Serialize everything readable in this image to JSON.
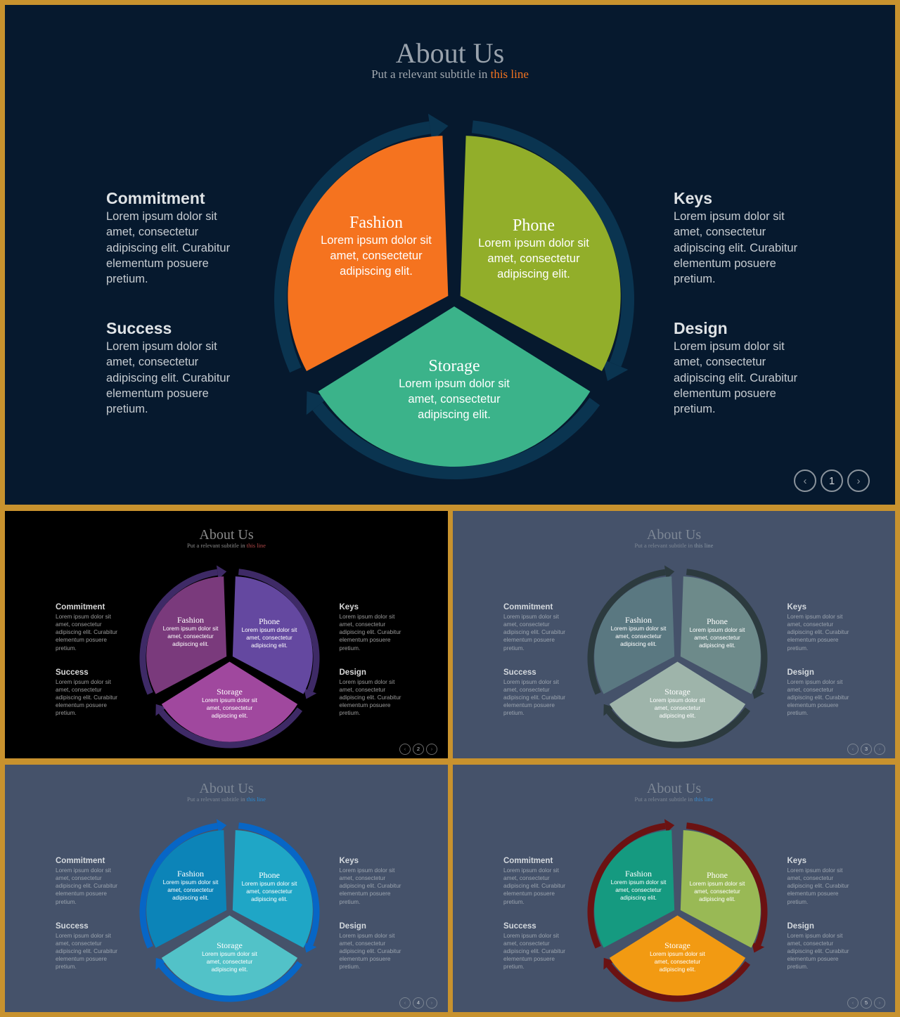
{
  "slides": [
    {
      "id": "main",
      "title": "About Us",
      "subtitle_prefix": "Put a relevant subtitle in ",
      "subtitle_highlight": "this line",
      "page_number": "1",
      "colors": {
        "background": "#06192e",
        "ring": "#0a3450",
        "title": "#9aa3ad",
        "subtitle": "#a0a7ae",
        "highlight": "#f2731f",
        "text": "#c7ccd1",
        "heading": "#dfe3e6",
        "nav": "#8a939c",
        "segment_text": "#ffffff"
      },
      "segments": [
        {
          "name": "Fashion",
          "text": "Lorem ipsum dolor sit amet, consectetur adipiscing elit.",
          "color": "#f5731f"
        },
        {
          "name": "Phone",
          "text": "Lorem ipsum dolor sit amet, consectetur adipiscing elit.",
          "color": "#92ae2a"
        },
        {
          "name": "Storage",
          "text": "Lorem ipsum dolor sit amet, consectetur adipiscing elit.",
          "color": "#3bb38a"
        }
      ]
    },
    {
      "id": "purple",
      "title": "About Us",
      "subtitle_prefix": "Put a relevant subtitle in ",
      "subtitle_highlight": "this line",
      "page_number": "2",
      "colors": {
        "background": "#000000",
        "ring": "#3e2a66",
        "title": "#8a8a8a",
        "subtitle": "#8a8a8a",
        "highlight": "#b04848",
        "text": "#9a9a9a",
        "heading": "#d8d8d8",
        "nav": "#6a6a6a",
        "segment_text": "#ffffff"
      },
      "segments": [
        {
          "name": "Fashion",
          "text": "Lorem ipsum dolor sit amet, consectetur adipiscing elit.",
          "color": "#7a3a7c"
        },
        {
          "name": "Phone",
          "text": "Lorem ipsum dolor sit amet, consectetur adipiscing elit.",
          "color": "#6448a0"
        },
        {
          "name": "Storage",
          "text": "Lorem ipsum dolor sit amet, consectetur adipiscing elit.",
          "color": "#a0489e"
        }
      ]
    },
    {
      "id": "slate",
      "title": "About Us",
      "subtitle_prefix": "Put a relevant subtitle in ",
      "subtitle_highlight": "this line",
      "page_number": "3",
      "colors": {
        "background": "#45526a",
        "ring": "#2c3a3e",
        "title": "#7d8795",
        "subtitle": "#7d8795",
        "highlight": "#8895a2",
        "text": "#9aa3ae",
        "heading": "#d4d9de",
        "nav": "#7a8492",
        "segment_text": "#ffffff"
      },
      "segments": [
        {
          "name": "Fashion",
          "text": "Lorem ipsum dolor sit amet, consectetur adipiscing elit.",
          "color": "#5a7881"
        },
        {
          "name": "Phone",
          "text": "Lorem ipsum dolor sit amet, consectetur adipiscing elit.",
          "color": "#6d8a8a"
        },
        {
          "name": "Storage",
          "text": "Lorem ipsum dolor sit amet, consectetur adipiscing elit.",
          "color": "#9eb4aa"
        }
      ]
    },
    {
      "id": "blue",
      "title": "About Us",
      "subtitle_prefix": "Put a relevant subtitle in ",
      "subtitle_highlight": "this line",
      "page_number": "4",
      "colors": {
        "background": "#45526a",
        "ring": "#0766c6",
        "title": "#7d8795",
        "subtitle": "#7d8795",
        "highlight": "#2a8ad0",
        "text": "#9aa3ae",
        "heading": "#d4d9de",
        "nav": "#7a8492",
        "segment_text": "#ffffff"
      },
      "segments": [
        {
          "name": "Fashion",
          "text": "Lorem ipsum dolor sit amet, consectetur adipiscing elit.",
          "color": "#0c84b8"
        },
        {
          "name": "Phone",
          "text": "Lorem ipsum dolor sit amet, consectetur adipiscing elit.",
          "color": "#1fa6c6"
        },
        {
          "name": "Storage",
          "text": "Lorem ipsum dolor sit amet, consectetur adipiscing elit.",
          "color": "#52c2c8"
        }
      ]
    },
    {
      "id": "warm",
      "title": "About Us",
      "subtitle_prefix": "Put a relevant subtitle in ",
      "subtitle_highlight": "this line",
      "page_number": "5",
      "colors": {
        "background": "#45526a",
        "ring": "#6b1212",
        "title": "#7d8795",
        "subtitle": "#7d8795",
        "highlight": "#3a8cd0",
        "text": "#9aa3ae",
        "heading": "#d4d9de",
        "nav": "#7a8492",
        "segment_text": "#ffffff"
      },
      "segments": [
        {
          "name": "Fashion",
          "text": "Lorem ipsum dolor sit amet, consectetur adipiscing elit.",
          "color": "#159a80"
        },
        {
          "name": "Phone",
          "text": "Lorem ipsum dolor sit amet, consectetur adipiscing elit.",
          "color": "#99b955"
        },
        {
          "name": "Storage",
          "text": "Lorem ipsum dolor sit amet, consectetur adipiscing elit.",
          "color": "#f29a12"
        }
      ]
    }
  ],
  "side_blocks": [
    {
      "heading": "Commitment",
      "body": "Lorem ipsum dolor sit amet, consectetur adipiscing elit. Curabitur elementum posuere pretium."
    },
    {
      "heading": "Success",
      "body": "Lorem ipsum dolor sit amet, consectetur adipiscing elit. Curabitur elementum posuere pretium."
    },
    {
      "heading": "Keys",
      "body": "Lorem ipsum dolor sit amet, consectetur adipiscing elit. Curabitur elementum posuere pretium."
    },
    {
      "heading": "Design",
      "body": "Lorem ipsum dolor sit amet, consectetur adipiscing elit. Curabitur elementum posuere pretium."
    }
  ],
  "icons": {
    "prev": "chevron-left-icon",
    "next": "chevron-right-icon"
  },
  "frame_color": "#c8922e"
}
